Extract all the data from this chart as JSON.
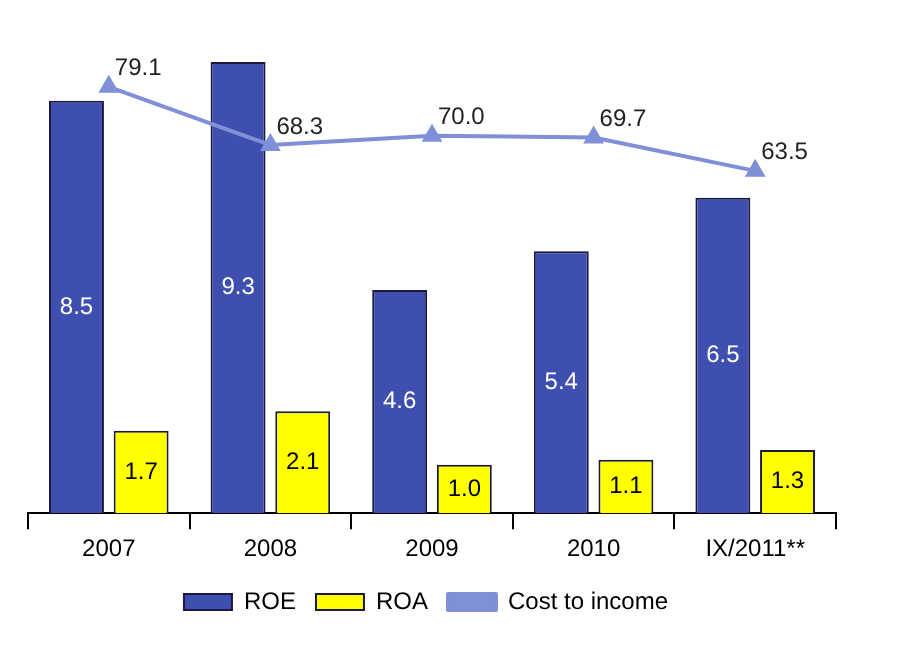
{
  "chart_data": {
    "type": "bar",
    "categories": [
      "2007",
      "2008",
      "2009",
      "2010",
      "IX/2011**"
    ],
    "series": [
      {
        "name": "ROE",
        "color": "#3f4fb0",
        "values": [
          8.5,
          9.3,
          4.6,
          5.4,
          6.5
        ],
        "value_labels": [
          "8.5",
          "9.3",
          "4.6",
          "5.4",
          "6.5"
        ]
      },
      {
        "name": "ROA",
        "color": "#ffff00",
        "values": [
          1.7,
          2.1,
          1.0,
          1.1,
          1.3
        ],
        "value_labels": [
          "1.7",
          "2.1",
          "1.0",
          "1.1",
          "1.3"
        ]
      },
      {
        "name": "Cost to income",
        "type": "line",
        "axis": "y2",
        "color": "#7f8fd8",
        "values": [
          79.1,
          68.3,
          70.0,
          69.7,
          63.5
        ],
        "value_labels": [
          "79.1",
          "68.3",
          "70.0",
          "69.7",
          "63.5"
        ]
      }
    ],
    "tick_labels": "x",
    "marker": "triangle",
    "line_style": "solid",
    "legend": "bottom"
  }
}
